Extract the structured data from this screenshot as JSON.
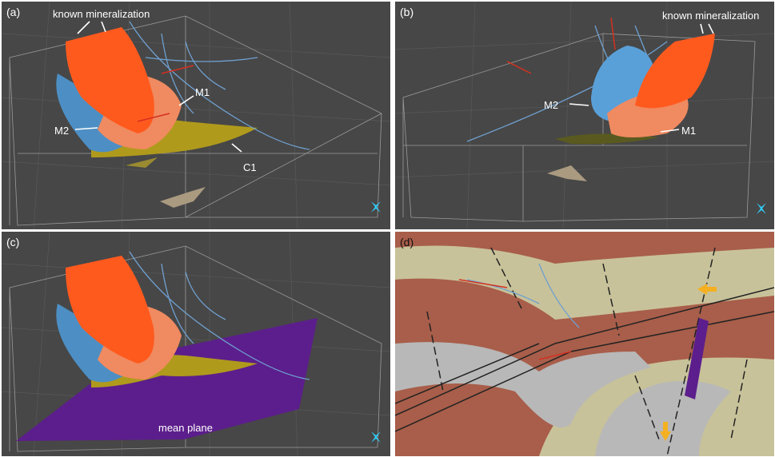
{
  "panels": [
    {
      "label": "(a)",
      "annotations": [
        "known mineralization",
        "M1",
        "M2",
        "C1"
      ]
    },
    {
      "label": "(b)",
      "annotations": [
        "known mineralization",
        "M2",
        "M1"
      ]
    },
    {
      "label": "(c)",
      "annotations": [
        "mean plane"
      ]
    },
    {
      "label": "(d)"
    }
  ]
}
